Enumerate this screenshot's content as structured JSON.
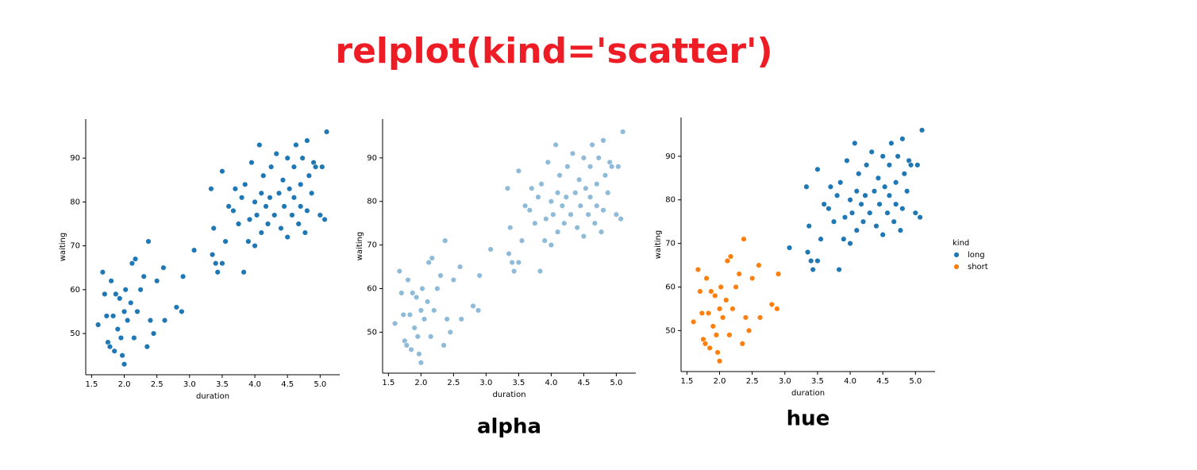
{
  "title": "relplot(kind='scatter')",
  "chart_data": [
    {
      "type": "scatter",
      "xlabel": "duration",
      "ylabel": "waiting",
      "xlim": [
        1.41,
        5.3
      ],
      "ylim": [
        40.6,
        98.9
      ],
      "xticks": [
        {
          "value": 1.5,
          "label": "1.5"
        },
        {
          "value": 2,
          "label": "2.0"
        },
        {
          "value": 2.5,
          "label": "2.5"
        },
        {
          "value": 3,
          "label": "3.0"
        },
        {
          "value": 3.5,
          "label": "3.5"
        },
        {
          "value": 4,
          "label": "4.0"
        },
        {
          "value": 4.5,
          "label": "4.5"
        },
        {
          "value": 5,
          "label": "5.0"
        }
      ],
      "yticks": [
        50,
        60,
        70,
        80,
        90
      ],
      "alpha": 1,
      "series": [
        {
          "color": "#1f77b4",
          "x": [
            1.6,
            1.67,
            1.7,
            1.73,
            1.75,
            1.78,
            1.8,
            1.83,
            1.85,
            1.87,
            1.9,
            1.93,
            1.95,
            1.97,
            2.0,
            2.0,
            2.02,
            2.05,
            2.1,
            2.12,
            2.15,
            2.17,
            2.2,
            2.25,
            2.3,
            2.35,
            2.37,
            2.4,
            2.45,
            2.5,
            2.6,
            2.62,
            2.8,
            2.88,
            2.9,
            3.07,
            3.33,
            3.35,
            3.37,
            3.4,
            3.43,
            3.5,
            3.5,
            3.55,
            3.6,
            3.67,
            3.7,
            3.75,
            3.8,
            3.83,
            3.85,
            3.9,
            3.92,
            3.95,
            4.0,
            4.0,
            4.03,
            4.07,
            4.1,
            4.1,
            4.13,
            4.17,
            4.2,
            4.23,
            4.25,
            4.3,
            4.33,
            4.37,
            4.4,
            4.43,
            4.45,
            4.5,
            4.5,
            4.53,
            4.57,
            4.6,
            4.6,
            4.63,
            4.67,
            4.7,
            4.7,
            4.73,
            4.77,
            4.8,
            4.8,
            4.83,
            4.87,
            4.9,
            4.93,
            5.0,
            5.03,
            5.07,
            5.1
          ],
          "values": [
            52,
            64,
            59,
            54,
            48,
            47,
            62,
            54,
            46,
            59,
            51,
            58,
            49,
            45,
            55,
            43,
            60,
            53,
            57,
            66,
            49,
            67,
            55,
            60,
            63,
            47,
            71,
            53,
            50,
            62,
            65,
            53,
            56,
            55,
            63,
            69,
            83,
            68,
            74,
            66,
            64,
            87,
            66,
            71,
            79,
            78,
            83,
            75,
            81,
            64,
            84,
            71,
            76,
            89,
            70,
            80,
            77,
            93,
            82,
            73,
            86,
            79,
            75,
            81,
            88,
            77,
            91,
            82,
            74,
            85,
            79,
            72,
            90,
            83,
            77,
            88,
            81,
            93,
            75,
            84,
            79,
            90,
            73,
            94,
            78,
            86,
            82,
            89,
            88,
            77,
            88,
            76,
            96
          ]
        }
      ]
    },
    {
      "type": "scatter",
      "xlabel": "duration",
      "ylabel": "waiting",
      "annotation": "alpha",
      "xlim": [
        1.41,
        5.3
      ],
      "ylim": [
        40.6,
        98.9
      ],
      "xticks": [
        {
          "value": 1.5,
          "label": "1.5"
        },
        {
          "value": 2,
          "label": "2.0"
        },
        {
          "value": 2.5,
          "label": "2.5"
        },
        {
          "value": 3,
          "label": "3.0"
        },
        {
          "value": 3.5,
          "label": "3.5"
        },
        {
          "value": 4,
          "label": "4.0"
        },
        {
          "value": 4.5,
          "label": "4.5"
        },
        {
          "value": 5,
          "label": "5.0"
        }
      ],
      "yticks": [
        50,
        60,
        70,
        80,
        90
      ],
      "alpha": 0.5,
      "series": [
        {
          "color": "#1f77b4",
          "x": [
            1.6,
            1.67,
            1.7,
            1.73,
            1.75,
            1.78,
            1.8,
            1.83,
            1.85,
            1.87,
            1.9,
            1.93,
            1.95,
            1.97,
            2.0,
            2.0,
            2.02,
            2.05,
            2.1,
            2.12,
            2.15,
            2.17,
            2.2,
            2.25,
            2.3,
            2.35,
            2.37,
            2.4,
            2.45,
            2.5,
            2.6,
            2.62,
            2.8,
            2.88,
            2.9,
            3.07,
            3.33,
            3.35,
            3.37,
            3.4,
            3.43,
            3.5,
            3.5,
            3.55,
            3.6,
            3.67,
            3.7,
            3.75,
            3.8,
            3.83,
            3.85,
            3.9,
            3.92,
            3.95,
            4.0,
            4.0,
            4.03,
            4.07,
            4.1,
            4.1,
            4.13,
            4.17,
            4.2,
            4.23,
            4.25,
            4.3,
            4.33,
            4.37,
            4.4,
            4.43,
            4.45,
            4.5,
            4.5,
            4.53,
            4.57,
            4.6,
            4.6,
            4.63,
            4.67,
            4.7,
            4.7,
            4.73,
            4.77,
            4.8,
            4.8,
            4.83,
            4.87,
            4.9,
            4.93,
            5.0,
            5.03,
            5.07,
            5.1
          ],
          "values": [
            52,
            64,
            59,
            54,
            48,
            47,
            62,
            54,
            46,
            59,
            51,
            58,
            49,
            45,
            55,
            43,
            60,
            53,
            57,
            66,
            49,
            67,
            55,
            60,
            63,
            47,
            71,
            53,
            50,
            62,
            65,
            53,
            56,
            55,
            63,
            69,
            83,
            68,
            74,
            66,
            64,
            87,
            66,
            71,
            79,
            78,
            83,
            75,
            81,
            64,
            84,
            71,
            76,
            89,
            70,
            80,
            77,
            93,
            82,
            73,
            86,
            79,
            75,
            81,
            88,
            77,
            91,
            82,
            74,
            85,
            79,
            72,
            90,
            83,
            77,
            88,
            81,
            93,
            75,
            84,
            79,
            90,
            73,
            94,
            78,
            86,
            82,
            89,
            88,
            77,
            88,
            76,
            96
          ]
        }
      ]
    },
    {
      "type": "scatter",
      "xlabel": "duration",
      "ylabel": "waiting",
      "annotation": "hue",
      "legend_title": "kind",
      "xlim": [
        1.41,
        5.3
      ],
      "ylim": [
        40.6,
        98.9
      ],
      "xticks": [
        {
          "value": 1.5,
          "label": "1.5"
        },
        {
          "value": 2,
          "label": "2.0"
        },
        {
          "value": 2.5,
          "label": "2.5"
        },
        {
          "value": 3,
          "label": "3.0"
        },
        {
          "value": 3.5,
          "label": "3.5"
        },
        {
          "value": 4,
          "label": "4.0"
        },
        {
          "value": 4.5,
          "label": "4.5"
        },
        {
          "value": 5,
          "label": "5.0"
        }
      ],
      "yticks": [
        50,
        60,
        70,
        80,
        90
      ],
      "alpha": 1,
      "series": [
        {
          "name": "long",
          "color": "#1f77b4",
          "x": [
            3.07,
            3.33,
            3.35,
            3.37,
            3.4,
            3.43,
            3.5,
            3.5,
            3.55,
            3.6,
            3.67,
            3.7,
            3.75,
            3.8,
            3.83,
            3.85,
            3.9,
            3.92,
            3.95,
            4.0,
            4.0,
            4.03,
            4.07,
            4.1,
            4.1,
            4.13,
            4.17,
            4.2,
            4.23,
            4.25,
            4.3,
            4.33,
            4.37,
            4.4,
            4.43,
            4.45,
            4.5,
            4.5,
            4.53,
            4.57,
            4.6,
            4.6,
            4.63,
            4.67,
            4.7,
            4.7,
            4.73,
            4.77,
            4.8,
            4.8,
            4.83,
            4.87,
            4.9,
            4.93,
            5.0,
            5.03,
            5.07,
            5.1
          ],
          "values": [
            69,
            83,
            68,
            74,
            66,
            64,
            87,
            66,
            71,
            79,
            78,
            83,
            75,
            81,
            64,
            84,
            71,
            76,
            89,
            70,
            80,
            77,
            93,
            82,
            73,
            86,
            79,
            75,
            81,
            88,
            77,
            91,
            82,
            74,
            85,
            79,
            72,
            90,
            83,
            77,
            88,
            81,
            93,
            75,
            84,
            79,
            90,
            73,
            94,
            78,
            86,
            82,
            89,
            88,
            77,
            88,
            76,
            96
          ]
        },
        {
          "name": "short",
          "color": "#ff7f0e",
          "x": [
            1.6,
            1.67,
            1.7,
            1.73,
            1.75,
            1.78,
            1.8,
            1.83,
            1.85,
            1.87,
            1.9,
            1.93,
            1.95,
            1.97,
            2.0,
            2.0,
            2.02,
            2.05,
            2.1,
            2.12,
            2.15,
            2.17,
            2.2,
            2.25,
            2.3,
            2.35,
            2.37,
            2.4,
            2.45,
            2.5,
            2.6,
            2.62,
            2.8,
            2.88,
            2.9
          ],
          "values": [
            52,
            64,
            59,
            54,
            48,
            47,
            62,
            54,
            46,
            59,
            51,
            58,
            49,
            45,
            55,
            43,
            60,
            53,
            57,
            66,
            49,
            67,
            55,
            60,
            63,
            47,
            71,
            53,
            50,
            62,
            65,
            53,
            56,
            55,
            63
          ]
        }
      ]
    }
  ]
}
